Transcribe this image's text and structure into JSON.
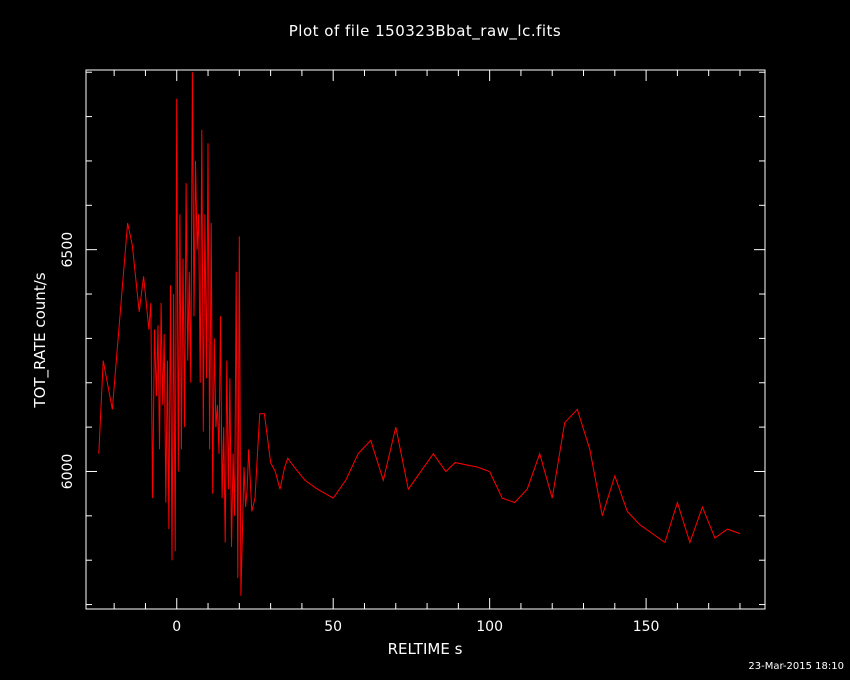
{
  "title": "Plot of file 150323Bbat_raw_lc.fits",
  "footer_timestamp": "23-Mar-2015 18:10",
  "colors": {
    "background": "#000000",
    "axes": "#ffffff",
    "series": "#ff0000"
  },
  "chart_data": {
    "type": "line",
    "xlabel": "RELTIME  s",
    "ylabel": "TOT_RATE  count/s",
    "xlim": [
      -29,
      188
    ],
    "ylim": [
      5690,
      6905
    ],
    "x_ticks": [
      0,
      50,
      100,
      150
    ],
    "y_ticks": [
      6000,
      6500
    ],
    "series": [
      {
        "color": "#ff0000",
        "x": [
          -24.9,
          -23.5,
          -20.6,
          -15.7,
          -14.2,
          -12.0,
          -10.6,
          -8.9,
          -8.3,
          -7.7,
          -7.1,
          -6.5,
          -6.0,
          -5.5,
          -5.0,
          -4.5,
          -4.0,
          -3.5,
          -3.0,
          -2.5,
          -2.0,
          -1.5,
          -1.0,
          -0.5,
          0.0,
          0.5,
          1.0,
          1.5,
          2.0,
          2.5,
          3.0,
          3.5,
          4.0,
          4.5,
          5.0,
          5.5,
          6.0,
          6.5,
          7.0,
          7.5,
          8.0,
          8.5,
          9.0,
          9.5,
          10.0,
          10.5,
          11.0,
          11.5,
          12.0,
          12.5,
          13.0,
          13.5,
          14.0,
          14.5,
          15.0,
          15.5,
          16.0,
          16.5,
          17.0,
          17.5,
          18.0,
          18.5,
          19.0,
          19.5,
          20.0,
          20.5,
          21.0,
          21.5,
          22.0,
          22.5,
          23.0,
          24.0,
          25.0,
          26.5,
          28.0,
          30.0,
          31.5,
          33.0,
          34.5,
          35.5,
          37.5,
          41.0,
          45.0,
          50.0,
          54.0,
          58.0,
          62.0,
          66.0,
          70.0,
          74.0,
          82.0,
          86.0,
          89.0,
          96.0,
          100.0,
          104.0,
          108.0,
          112.0,
          116.0,
          120.0,
          124.0,
          128.0,
          132.0,
          136.0,
          140.0,
          144.0,
          148.0,
          152.0,
          156.0,
          160.0,
          164.0,
          168.0,
          172.0,
          176.0,
          180.0
        ],
        "y": [
          6040,
          6250,
          6140,
          6560,
          6510,
          6360,
          6440,
          6320,
          6380,
          5940,
          6320,
          6170,
          6330,
          6050,
          6380,
          6150,
          6310,
          5930,
          6250,
          5870,
          6420,
          5800,
          6400,
          5820,
          6840,
          6000,
          6580,
          6050,
          6480,
          6100,
          6650,
          6250,
          6450,
          6200,
          6900,
          6350,
          6700,
          6500,
          6580,
          6200,
          6770,
          6090,
          6580,
          6210,
          6740,
          6050,
          6560,
          5950,
          6300,
          6100,
          6150,
          6040,
          6350,
          5940,
          6100,
          5840,
          6250,
          5960,
          6210,
          5830,
          6040,
          5900,
          6450,
          5760,
          6530,
          5720,
          5870,
          6010,
          5920,
          5960,
          6050,
          5910,
          5940,
          6130,
          6130,
          6020,
          6000,
          5960,
          6010,
          6030,
          6010,
          5980,
          5960,
          5940,
          5980,
          6040,
          6070,
          5980,
          6100,
          5960,
          6040,
          6000,
          6020,
          6010,
          6000,
          5940,
          5930,
          5960,
          6040,
          5940,
          6110,
          6140,
          6050,
          5900,
          5990,
          5910,
          5880,
          5860,
          5840,
          5930,
          5840,
          5920,
          5850,
          5870,
          5860
        ]
      }
    ]
  }
}
